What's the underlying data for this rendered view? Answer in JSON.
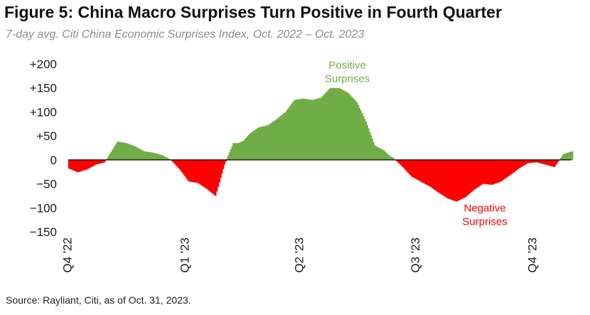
{
  "header": {
    "title": "Figure 5: China Macro Surprises Turn Positive in Fourth Quarter",
    "subtitle": "7-day avg. Citi China Economic Surprises Index, Oct. 2022 – Oct. 2023"
  },
  "footer": {
    "source": "Source: Rayliant, Citi, as of Oct. 31, 2023."
  },
  "chart_data": {
    "type": "area",
    "title": "Figure 5: China Macro Surprises Turn Positive in Fourth Quarter",
    "subtitle": "7-day avg. Citi China Economic Surprises Index, Oct. 2022 – Oct. 2023",
    "xlabel": "",
    "ylabel": "",
    "ylim": [
      -150,
      200
    ],
    "y_ticks": [
      200,
      150,
      100,
      50,
      0,
      -50,
      -100,
      -150
    ],
    "y_tick_labels": [
      "+200",
      "+150",
      "+100",
      "+50",
      "0",
      "−50",
      "−100",
      "−150"
    ],
    "x_tick_labels": [
      "Q4 '22",
      "Q1 '23",
      "Q2 '23",
      "Q3 '23",
      "Q4 '23"
    ],
    "x_ticks": [
      "2022-10-01",
      "2023-01-01",
      "2023-04-01",
      "2023-07-01",
      "2023-10-01"
    ],
    "x_range": [
      "2022-10-01",
      "2023-10-31"
    ],
    "grid": false,
    "positive_color": "#70ad47",
    "negative_color": "#ff0000",
    "annotations": [
      {
        "text": [
          "Positive",
          "Surprises"
        ],
        "color": "#70ad47",
        "x": "2023-05-08",
        "y": 190
      },
      {
        "text": [
          "Negative",
          "Surprises"
        ],
        "color": "#ff0000",
        "x": "2023-08-24",
        "y": -108
      }
    ],
    "series": [
      {
        "x": [
          "2022-10-01",
          "2022-10-08",
          "2022-10-15",
          "2022-10-22",
          "2022-10-29",
          "2022-11-05",
          "2022-11-08",
          "2022-11-15",
          "2022-11-22",
          "2022-11-29",
          "2022-12-06",
          "2022-12-13",
          "2022-12-20",
          "2022-12-27",
          "2023-01-03",
          "2023-01-10",
          "2023-01-17",
          "2023-01-24",
          "2023-01-31",
          "2023-02-07",
          "2023-02-11",
          "2023-02-15",
          "2023-02-20",
          "2023-02-27",
          "2023-03-06",
          "2023-03-13",
          "2023-03-20",
          "2023-03-27",
          "2023-04-03",
          "2023-04-10",
          "2023-04-17",
          "2023-04-24",
          "2023-05-01",
          "2023-05-08",
          "2023-05-15",
          "2023-05-22",
          "2023-05-29",
          "2023-06-05",
          "2023-06-09",
          "2023-06-13",
          "2023-06-20",
          "2023-06-27",
          "2023-07-04",
          "2023-07-11",
          "2023-07-18",
          "2023-07-25",
          "2023-08-01",
          "2023-08-08",
          "2023-08-15",
          "2023-08-22",
          "2023-08-29",
          "2023-09-05",
          "2023-09-12",
          "2023-09-19",
          "2023-09-26",
          "2023-10-03",
          "2023-10-10",
          "2023-10-17",
          "2023-10-24",
          "2023-10-31"
        ],
        "y": [
          -18,
          -26,
          -20,
          -10,
          -5,
          25,
          38,
          35,
          28,
          18,
          15,
          10,
          0,
          -20,
          -45,
          -48,
          -60,
          -75,
          -10,
          35,
          35,
          40,
          55,
          68,
          72,
          85,
          100,
          125,
          128,
          125,
          130,
          150,
          150,
          140,
          120,
          80,
          30,
          20,
          10,
          3,
          -15,
          -35,
          -45,
          -55,
          -68,
          -80,
          -87,
          -78,
          -62,
          -50,
          -52,
          -45,
          -32,
          -18,
          -7,
          -5,
          -10,
          -15,
          12,
          18
        ]
      }
    ]
  }
}
